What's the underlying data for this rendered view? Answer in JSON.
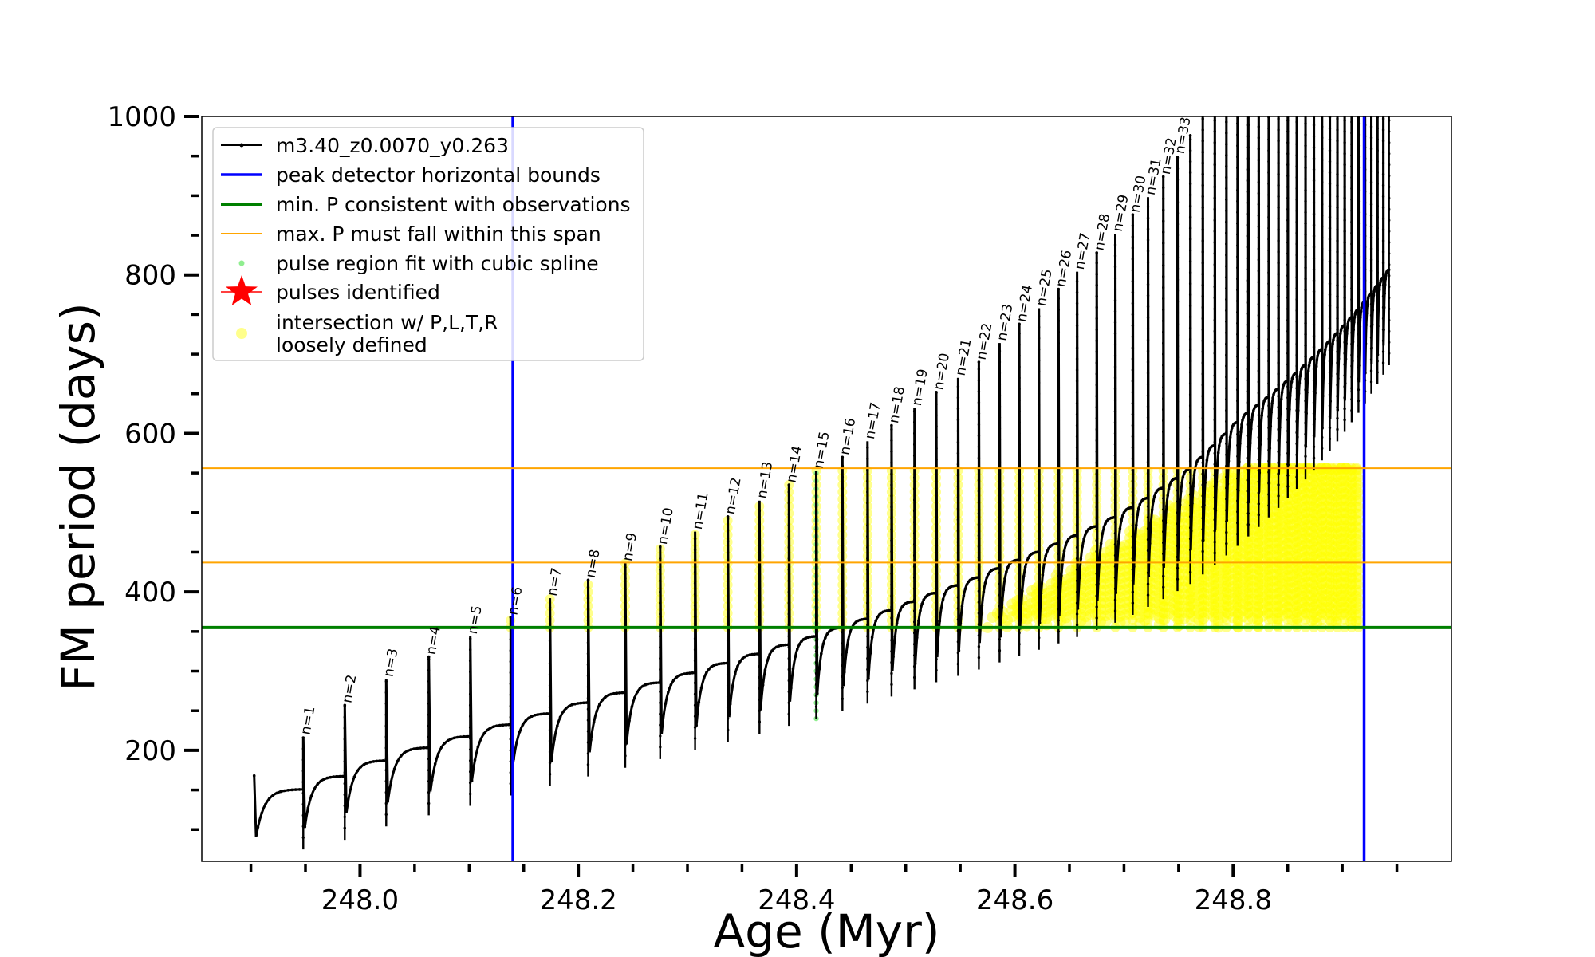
{
  "chart_data": {
    "type": "line",
    "xlabel": "Age (Myr)",
    "ylabel": "FM period (days)",
    "xlim": [
      247.855,
      249.0
    ],
    "ylim": [
      60,
      1000
    ],
    "x_ticks": [
      248.0,
      248.2,
      248.4,
      248.6,
      248.8
    ],
    "x_tick_labels": [
      "248.0",
      "248.2",
      "248.4",
      "248.6",
      "248.8"
    ],
    "y_ticks": [
      200,
      400,
      600,
      800,
      1000
    ],
    "y_tick_labels": [
      "200",
      "400",
      "600",
      "800",
      "1000"
    ],
    "grid": false,
    "legend_position": "upper-left",
    "colors": {
      "track": "#000000",
      "bounds": "#0000ff",
      "min_p": "#008000",
      "max_span": "#ffa500",
      "spline": "#90ee90",
      "pulses": "#ff0000",
      "loose": "#ffff00"
    },
    "legend": [
      {
        "label": "m3.40_z0.0070_y0.263",
        "symbol": "line-dot"
      },
      {
        "label": "peak detector horizontal bounds",
        "symbol": "blue-line"
      },
      {
        "label": "min. P consistent with observations",
        "symbol": "green-line"
      },
      {
        "label": "max. P must fall within this span",
        "symbol": "orange-line"
      },
      {
        "label": "pulse region fit with cubic spline",
        "symbol": "lightgreen-dot"
      },
      {
        "label": "pulses identified",
        "symbol": "red-star"
      },
      {
        "label": "intersection w/ P,L,T,R",
        "label2": "loosely defined",
        "symbol": "yellow-dot"
      }
    ],
    "reference_lines": {
      "vertical_bounds": [
        248.14,
        248.92
      ],
      "min_period": 355,
      "max_period_span": [
        437,
        556
      ]
    },
    "series": [
      {
        "name": "m3.40_z0.0070_y0.263",
        "pulses": [
          {
            "n": 1,
            "age": 247.948,
            "peak": 217,
            "base": 90
          },
          {
            "n": 2,
            "age": 247.986,
            "peak": 257,
            "base": 102
          },
          {
            "n": 3,
            "age": 248.024,
            "peak": 290,
            "base": 119
          },
          {
            "n": 4,
            "age": 248.063,
            "peak": 318,
            "base": 133
          },
          {
            "n": 5,
            "age": 248.101,
            "peak": 344,
            "base": 145
          },
          {
            "n": 6,
            "age": 248.138,
            "peak": 368,
            "base": 158
          },
          {
            "n": 7,
            "age": 248.174,
            "peak": 392,
            "base": 170
          },
          {
            "n": 8,
            "age": 248.209,
            "peak": 415,
            "base": 182
          },
          {
            "n": 9,
            "age": 248.243,
            "peak": 436,
            "base": 193
          },
          {
            "n": 10,
            "age": 248.275,
            "peak": 457,
            "base": 204
          },
          {
            "n": 11,
            "age": 248.307,
            "peak": 476,
            "base": 215
          },
          {
            "n": 12,
            "age": 248.337,
            "peak": 495,
            "base": 226
          },
          {
            "n": 13,
            "age": 248.366,
            "peak": 515,
            "base": 236
          },
          {
            "n": 14,
            "age": 248.393,
            "peak": 535,
            "base": 246
          },
          {
            "n": 15,
            "age": 248.418,
            "peak": 553,
            "base": 255
          },
          {
            "n": 16,
            "age": 248.442,
            "peak": 570,
            "base": 265
          },
          {
            "n": 17,
            "age": 248.465,
            "peak": 590,
            "base": 274
          },
          {
            "n": 18,
            "age": 248.487,
            "peak": 610,
            "base": 283
          },
          {
            "n": 19,
            "age": 248.508,
            "peak": 632,
            "base": 292
          },
          {
            "n": 20,
            "age": 248.528,
            "peak": 652,
            "base": 301
          },
          {
            "n": 21,
            "age": 248.548,
            "peak": 670,
            "base": 309
          },
          {
            "n": 22,
            "age": 248.567,
            "peak": 690,
            "base": 317
          },
          {
            "n": 23,
            "age": 248.586,
            "peak": 714,
            "base": 326
          },
          {
            "n": 24,
            "age": 248.604,
            "peak": 738,
            "base": 334
          },
          {
            "n": 25,
            "age": 248.622,
            "peak": 758,
            "base": 342
          },
          {
            "n": 26,
            "age": 248.64,
            "peak": 782,
            "base": 350
          },
          {
            "n": 27,
            "age": 248.657,
            "peak": 804,
            "base": 358
          },
          {
            "n": 28,
            "age": 248.675,
            "peak": 828,
            "base": 367
          },
          {
            "n": 29,
            "age": 248.692,
            "peak": 852,
            "base": 376
          },
          {
            "n": 30,
            "age": 248.708,
            "peak": 876,
            "base": 386
          },
          {
            "n": 31,
            "age": 248.722,
            "peak": 898,
            "base": 396
          },
          {
            "n": 32,
            "age": 248.736,
            "peak": 924,
            "base": 406
          },
          {
            "n": 33,
            "age": 248.749,
            "peak": 950,
            "base": 416
          }
        ]
      }
    ]
  }
}
